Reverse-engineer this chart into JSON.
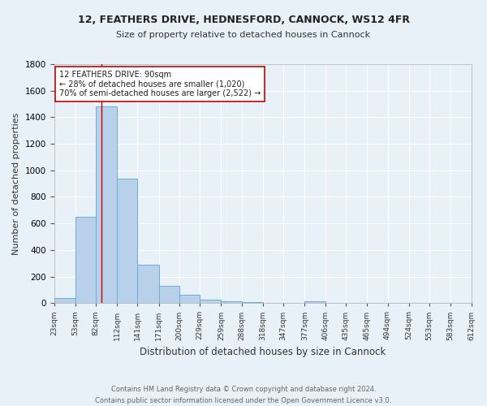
{
  "title_line1": "12, FEATHERS DRIVE, HEDNESFORD, CANNOCK, WS12 4FR",
  "title_line2": "Size of property relative to detached houses in Cannock",
  "xlabel": "Distribution of detached houses by size in Cannock",
  "ylabel": "Number of detached properties",
  "bar_edges": [
    23,
    53,
    82,
    112,
    141,
    171,
    200,
    229,
    259,
    288,
    318,
    347,
    377,
    406,
    435,
    465,
    494,
    524,
    553,
    583,
    612
  ],
  "bar_heights": [
    40,
    650,
    1480,
    940,
    290,
    130,
    65,
    25,
    12,
    5,
    3,
    2,
    15,
    0,
    0,
    0,
    0,
    0,
    0,
    0
  ],
  "bar_color": "#b8d0ea",
  "bar_edge_color": "#6aaed6",
  "bg_color": "#e8f0f8",
  "grid_color": "#ffffff",
  "property_line_x": 90,
  "property_line_color": "#cc0000",
  "annotation_text": "12 FEATHERS DRIVE: 90sqm\n← 28% of detached houses are smaller (1,020)\n70% of semi-detached houses are larger (2,522) →",
  "annotation_box_color": "#ffffff",
  "annotation_box_edge_color": "#cc0000",
  "footnote_line1": "Contains HM Land Registry data © Crown copyright and database right 2024.",
  "footnote_line2": "Contains public sector information licensed under the Open Government Licence v3.0.",
  "ylim": [
    0,
    1800
  ],
  "xlim": [
    23,
    612
  ],
  "yticks": [
    0,
    200,
    400,
    600,
    800,
    1000,
    1200,
    1400,
    1600,
    1800
  ]
}
